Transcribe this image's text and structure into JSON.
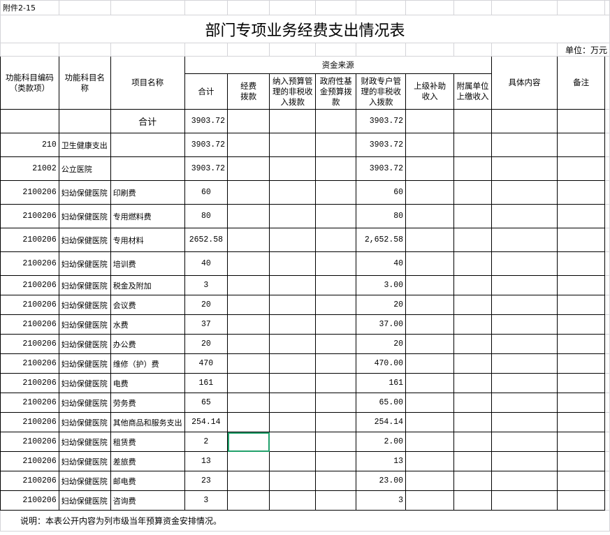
{
  "sheet": {
    "attachment_label": "附件2-15",
    "title": "部门专项业务经费支出情况表",
    "unit": "单位：万元",
    "footnote": "说明：本表公开内容为列市级当年预算资金安排情况。"
  },
  "headers": {
    "code": "功能科目编码（类款项）",
    "name": "功能科目名称",
    "item": "项目名称",
    "fund_source": "资金来源",
    "total": "合计",
    "funding": "经费拨款",
    "nontax": "纳入预算管理的非税收入拨款",
    "govfund": "政府性基金预算拨款",
    "fiscal_nontax": "财政专户管理的非税收入拨款",
    "superior": "上级补助收入",
    "affiliated": "附属单位上缴收入",
    "detail": "具体内容",
    "remark": "备注"
  },
  "rows": [
    {
      "code": "",
      "name": "",
      "item": "合计",
      "total": "3903.72",
      "fiscal": "3903.72"
    },
    {
      "code": "210",
      "name": "卫生健康支出",
      "item": "",
      "total": "3903.72",
      "fiscal": "3903.72"
    },
    {
      "code": "21002",
      "name": "公立医院",
      "item": "",
      "total": "3903.72",
      "fiscal": "3903.72"
    },
    {
      "code": "2100206",
      "name": "妇幼保健医院",
      "item": "印刷费",
      "total": "60",
      "fiscal": "60"
    },
    {
      "code": "2100206",
      "name": "妇幼保健医院",
      "item": "专用燃料费",
      "total": "80",
      "fiscal": "80"
    },
    {
      "code": "2100206",
      "name": "妇幼保健医院",
      "item": "专用材料",
      "total": "2652.58",
      "fiscal": "2,652.58"
    },
    {
      "code": "2100206",
      "name": "妇幼保健医院",
      "item": "培训费",
      "total": "40",
      "fiscal": "40"
    },
    {
      "code": "2100206",
      "name": "妇幼保健医院",
      "item": "税金及附加",
      "total": "3",
      "fiscal": "3.00"
    },
    {
      "code": "2100206",
      "name": "妇幼保健医院",
      "item": "会议费",
      "total": "20",
      "fiscal": "20"
    },
    {
      "code": "2100206",
      "name": "妇幼保健医院",
      "item": "水费",
      "total": "37",
      "fiscal": "37.00"
    },
    {
      "code": "2100206",
      "name": "妇幼保健医院",
      "item": "办公费",
      "total": "20",
      "fiscal": "20"
    },
    {
      "code": "2100206",
      "name": "妇幼保健医院",
      "item": "维修（护）费",
      "total": "470",
      "fiscal": "470.00"
    },
    {
      "code": "2100206",
      "name": "妇幼保健医院",
      "item": "电费",
      "total": "161",
      "fiscal": "161"
    },
    {
      "code": "2100206",
      "name": "妇幼保健医院",
      "item": "劳务费",
      "total": "65",
      "fiscal": "65.00"
    },
    {
      "code": "2100206",
      "name": "妇幼保健医院",
      "item": "其他商品和服务支出",
      "total": "254.14",
      "fiscal": "254.14"
    },
    {
      "code": "2100206",
      "name": "妇幼保健医院",
      "item": "租赁费",
      "total": "2",
      "fiscal": "2.00"
    },
    {
      "code": "2100206",
      "name": "妇幼保健医院",
      "item": "差旅费",
      "total": "13",
      "fiscal": "13"
    },
    {
      "code": "2100206",
      "name": "妇幼保健医院",
      "item": "邮电费",
      "total": "23",
      "fiscal": "23.00"
    },
    {
      "code": "2100206",
      "name": "妇幼保健医院",
      "item": "咨询费",
      "total": "3",
      "fiscal": "3"
    }
  ],
  "selection": {
    "row": 15,
    "column": "经费拨款",
    "color": "#21a06b"
  }
}
